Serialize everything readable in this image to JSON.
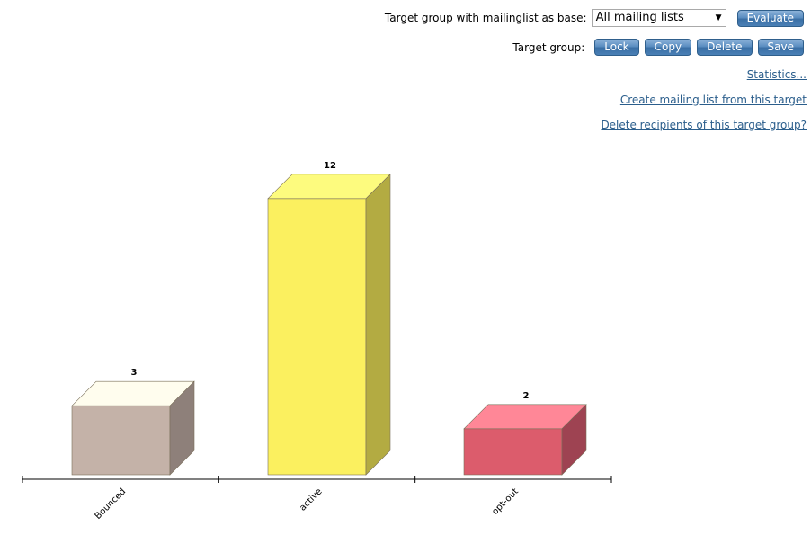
{
  "controls": {
    "base_label": "Target group with mailinglist as base:",
    "mailinglist_select_value": "All mailing lists",
    "evaluate_label": "Evaluate",
    "target_group_label": "Target group:",
    "lock_label": "Lock",
    "copy_label": "Copy",
    "delete_label": "Delete",
    "save_label": "Save"
  },
  "links": {
    "statistics": "Statistics...",
    "create_mailing_list": "Create mailing list from this target",
    "delete_recipients": "Delete recipients of this target group?"
  },
  "colors": {
    "button_blue": "#4a80b6",
    "link_blue": "#2b5e8c"
  },
  "chart_data": {
    "type": "bar",
    "style": "3d",
    "categories": [
      "Bounced",
      "active",
      "opt-out"
    ],
    "values": [
      3,
      12,
      2
    ],
    "data_labels": [
      "3",
      "12",
      "2"
    ],
    "colors": [
      {
        "front": "#c4b2a8",
        "top": "#fffdee",
        "side": "#8e807a"
      },
      {
        "front": "#fbf05f",
        "top": "#fdfb7e",
        "side": "#b3ab42"
      },
      {
        "front": "#dc5c6c",
        "top": "#ff8797",
        "side": "#9e4352"
      }
    ],
    "grid": false,
    "legend": "none"
  }
}
